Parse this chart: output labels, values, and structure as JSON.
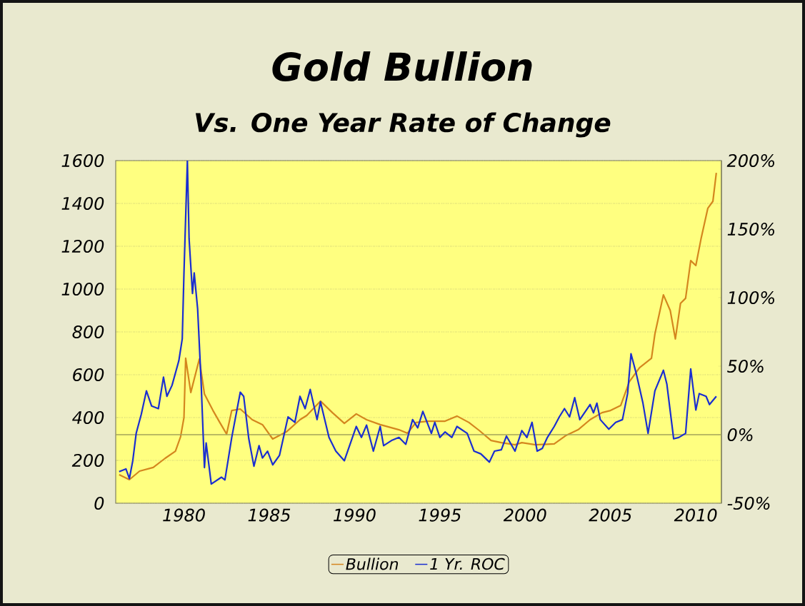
{
  "chart_data": {
    "type": "line",
    "title": "Gold Bullion",
    "subtitle": "Vs. One Year Rate of Change",
    "xlim": [
      1976,
      2011.5
    ],
    "xticks": [
      1980,
      1985,
      1990,
      1995,
      2000,
      2005,
      2010
    ],
    "ylim": [
      0,
      1600
    ],
    "yticks": [
      0,
      200,
      400,
      600,
      800,
      1000,
      1200,
      1400,
      1600
    ],
    "y2lim": [
      -50,
      200
    ],
    "y2ticks": [
      {
        "value": -50,
        "label": "-50%"
      },
      {
        "value": 0,
        "label": "0%"
      },
      {
        "value": 50,
        "label": "50%"
      },
      {
        "value": 100,
        "label": "100%"
      },
      {
        "value": 150,
        "label": "150%"
      },
      {
        "value": 200,
        "label": "200%"
      }
    ],
    "grid": "y",
    "legend": "bottom",
    "ref_lines": [
      {
        "axis": "y2",
        "value": 0,
        "color": "#a3a35a"
      }
    ],
    "series": [
      {
        "name": "Bullion",
        "color": "#d4861e",
        "x": [
          1976.2,
          1976.8,
          1977.4,
          1978.2,
          1978.9,
          1979.5,
          1979.8,
          1980.0,
          1980.1,
          1980.4,
          1980.9,
          1981.2,
          1981.7,
          1982.1,
          1982.5,
          1982.8,
          1983.3,
          1984.0,
          1984.6,
          1985.2,
          1986.0,
          1986.8,
          1987.2,
          1988.0,
          1988.7,
          1989.4,
          1990.1,
          1990.7,
          1991.5,
          1992.6,
          1993.1,
          1993.6,
          1994.3,
          1995.3,
          1996.0,
          1996.7,
          1997.3,
          1998.0,
          1998.6,
          1999.4,
          1999.8,
          2000.6,
          2001.7,
          2002.4,
          2003.1,
          2003.8,
          2004.5,
          2005.0,
          2005.6,
          2006.1,
          2006.7,
          2007.4,
          2007.6,
          2008.1,
          2008.5,
          2008.8,
          2009.1,
          2009.4,
          2009.7,
          2010.0,
          2010.3,
          2010.7,
          2011.0,
          2011.2
        ],
        "values": [
          133,
          110,
          150,
          167,
          210,
          243,
          310,
          400,
          677,
          517,
          673,
          510,
          433,
          377,
          323,
          433,
          440,
          390,
          367,
          300,
          333,
          390,
          410,
          477,
          423,
          373,
          417,
          390,
          367,
          343,
          327,
          377,
          383,
          383,
          407,
          377,
          340,
          293,
          283,
          273,
          283,
          273,
          277,
          317,
          343,
          390,
          423,
          433,
          457,
          567,
          633,
          677,
          790,
          973,
          900,
          767,
          933,
          957,
          1133,
          1110,
          1233,
          1377,
          1410,
          1543
        ]
      },
      {
        "name": "1 Yr. ROC",
        "color": "#1a2ed0",
        "axis": "y2",
        "x": [
          1976.2,
          1976.6,
          1976.8,
          1977.0,
          1977.2,
          1977.5,
          1977.8,
          1978.1,
          1978.5,
          1978.8,
          1979.0,
          1979.3,
          1979.7,
          1979.9,
          1980.0,
          1980.2,
          1980.3,
          1980.5,
          1980.6,
          1980.8,
          1981.0,
          1981.2,
          1981.3,
          1981.6,
          1982.2,
          1982.4,
          1982.8,
          1983.3,
          1983.5,
          1983.8,
          1984.1,
          1984.4,
          1984.6,
          1984.9,
          1985.2,
          1985.6,
          1986.1,
          1986.5,
          1986.8,
          1987.1,
          1987.4,
          1987.8,
          1988.0,
          1988.5,
          1988.9,
          1989.4,
          1990.1,
          1990.4,
          1990.7,
          1991.1,
          1991.5,
          1991.7,
          1992.2,
          1992.6,
          1993.0,
          1993.4,
          1993.7,
          1994.0,
          1994.5,
          1994.7,
          1995.0,
          1995.3,
          1995.7,
          1996.0,
          1996.6,
          1997.0,
          1997.4,
          1997.9,
          1998.2,
          1998.6,
          1998.9,
          1999.4,
          1999.8,
          2000.1,
          2000.4,
          2000.7,
          2001.0,
          2001.3,
          2001.7,
          2002.0,
          2002.3,
          2002.6,
          2002.9,
          2003.2,
          2003.8,
          2004.0,
          2004.2,
          2004.4,
          2004.9,
          2005.3,
          2005.7,
          2006.0,
          2006.2,
          2006.5,
          2006.9,
          2007.2,
          2007.6,
          2008.1,
          2008.3,
          2008.7,
          2009.0,
          2009.4,
          2009.7,
          2010.0,
          2010.2,
          2010.6,
          2010.8,
          2011.2
        ],
        "values": [
          -27,
          -25,
          -32,
          -19,
          1,
          15,
          32,
          21,
          19,
          42,
          28,
          36,
          54,
          70,
          118,
          200,
          143,
          103,
          118,
          92,
          40,
          -24,
          -6,
          -36,
          -31,
          -33,
          -2,
          31,
          28,
          -3,
          -23,
          -8,
          -17,
          -12,
          -22,
          -15,
          13,
          9,
          28,
          19,
          33,
          11,
          24,
          -2,
          -12,
          -19,
          6,
          -2,
          7,
          -12,
          6,
          -8,
          -4,
          -2,
          -7,
          11,
          5,
          17,
          1,
          9,
          -2,
          2,
          -2,
          6,
          1,
          -12,
          -14,
          -20,
          -12,
          -11,
          -1,
          -12,
          3,
          -2,
          9,
          -12,
          -10,
          -2,
          6,
          13,
          19,
          13,
          27,
          11,
          22,
          16,
          23,
          11,
          4,
          9,
          11,
          30,
          59,
          45,
          23,
          1,
          32,
          47,
          37,
          -3,
          -2,
          1,
          48,
          18,
          30,
          28,
          22,
          28
        ]
      }
    ]
  }
}
